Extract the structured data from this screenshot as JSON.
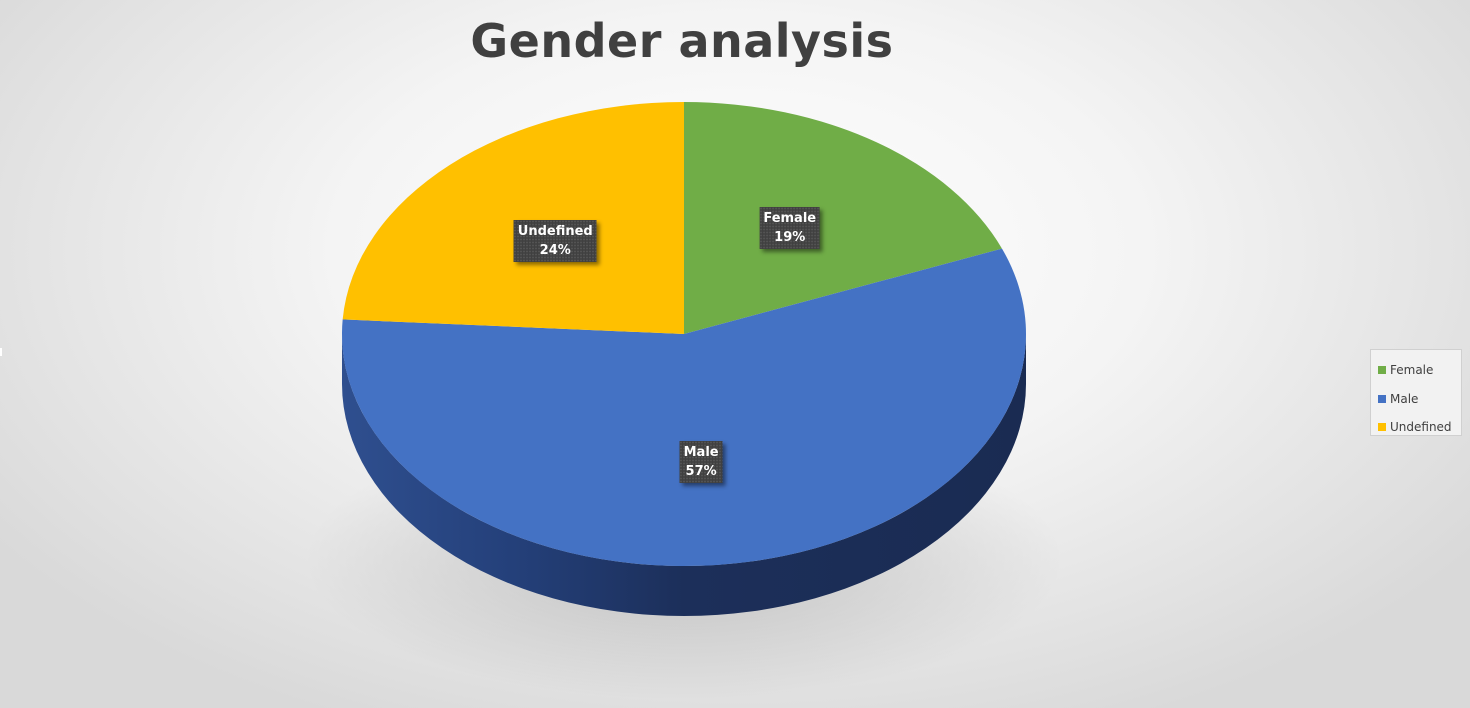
{
  "chart_data": {
    "type": "pie",
    "title": "Gender analysis",
    "three_d": true,
    "categories": [
      "Female",
      "Male",
      "Undefined"
    ],
    "values": [
      19,
      57,
      24
    ],
    "value_format": "percent",
    "colors": [
      "#70AD47",
      "#4472C4",
      "#FFC000"
    ],
    "data_labels": [
      {
        "name": "Female",
        "value": "19%"
      },
      {
        "name": "Male",
        "value": "57%"
      },
      {
        "name": "Undefined",
        "value": "24%"
      }
    ],
    "legend": {
      "position": "right",
      "entries": [
        "Female",
        "Male",
        "Undefined"
      ]
    }
  }
}
